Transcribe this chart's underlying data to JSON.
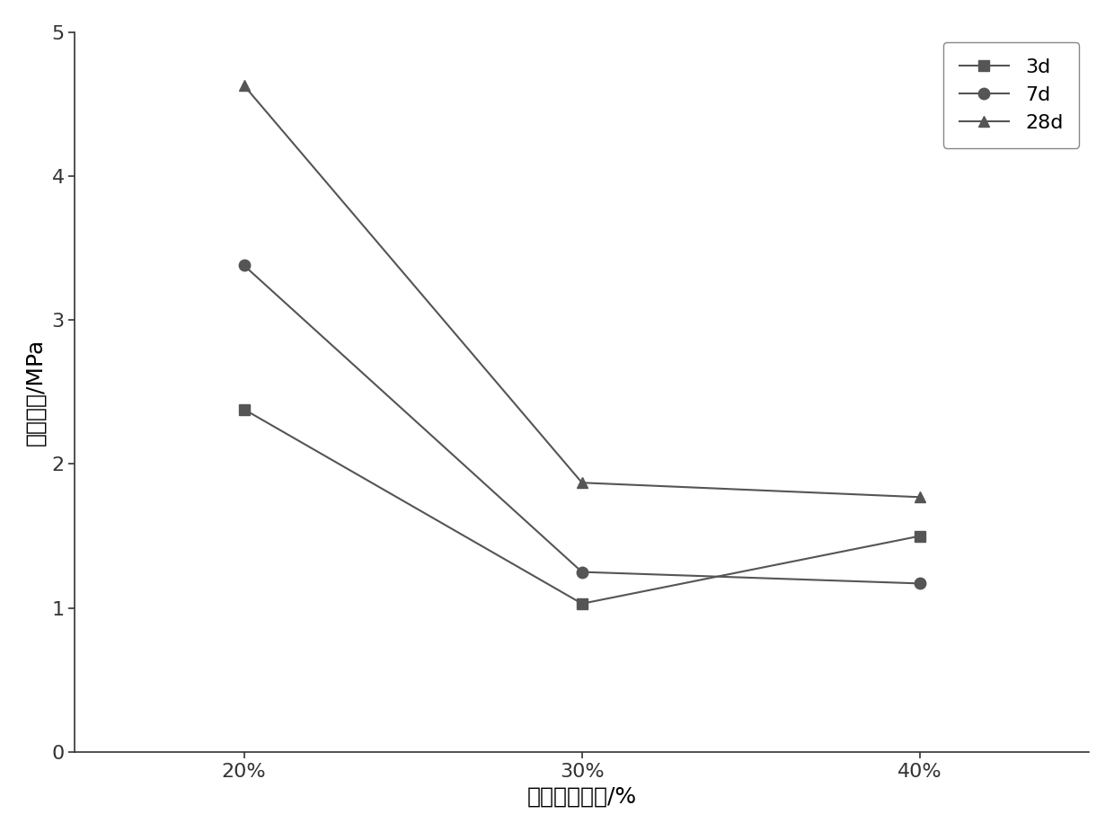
{
  "x_labels": [
    "20%",
    "30%",
    "40%"
  ],
  "x_values": [
    20,
    30,
    40
  ],
  "series": [
    {
      "label": "3d",
      "values": [
        2.38,
        1.03,
        1.5
      ],
      "marker": "s",
      "color": "#555555"
    },
    {
      "label": "7d",
      "values": [
        3.38,
        1.25,
        1.17
      ],
      "marker": "o",
      "color": "#555555"
    },
    {
      "label": "28d",
      "values": [
        4.63,
        1.87,
        1.77
      ],
      "marker": "^",
      "color": "#555555"
    }
  ],
  "xlabel": "铁尾矿砂掺量/%",
  "ylabel": "抗折强度/MPa",
  "ylim": [
    0,
    5
  ],
  "yticks": [
    0,
    1,
    2,
    3,
    4,
    5
  ],
  "background_color": "#ffffff",
  "line_color": "#888888",
  "title_fontsize": 18,
  "label_fontsize": 18,
  "tick_fontsize": 16,
  "legend_fontsize": 16,
  "marker_size": 9,
  "line_width": 1.5
}
